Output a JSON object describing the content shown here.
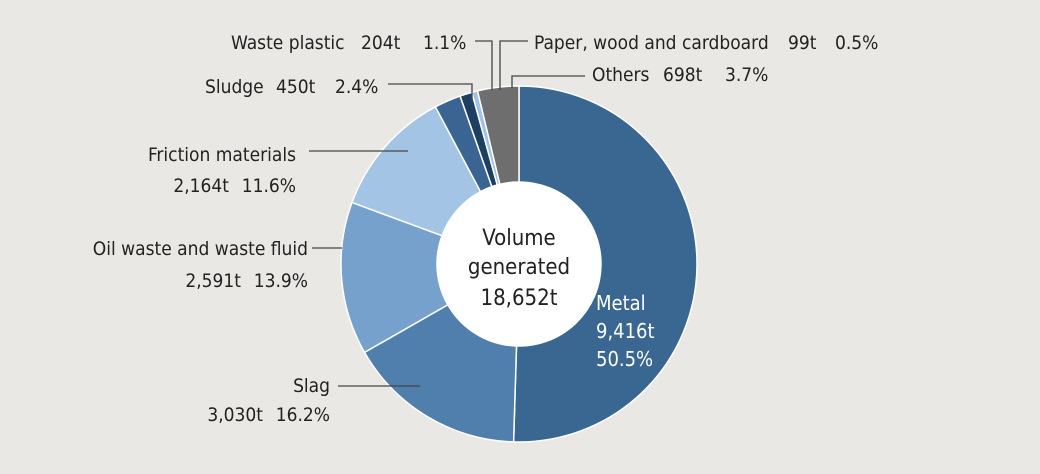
{
  "chart_data": {
    "type": "pie",
    "title": "",
    "center": {
      "line1": "Volume",
      "line2": "generated",
      "line3": "18,652t"
    },
    "total": 18652,
    "unit": "t",
    "slices": [
      {
        "name": "Metal",
        "value_label": "9,416t",
        "percent_label": "50.5%",
        "value": 9416,
        "percent": 50.5,
        "color": "#396791"
      },
      {
        "name": "Slag",
        "value_label": "3,030t",
        "percent_label": "16.2%",
        "value": 3030,
        "percent": 16.2,
        "color": "#517fad"
      },
      {
        "name": "Oil waste and waste fluid",
        "value_label": "2,591t",
        "percent_label": "13.9%",
        "value": 2591,
        "percent": 13.9,
        "color": "#76a1cc"
      },
      {
        "name": "Friction materials",
        "value_label": "2,164t",
        "percent_label": "11.6%",
        "value": 2164,
        "percent": 11.6,
        "color": "#a3c4e4"
      },
      {
        "name": "Sludge",
        "value_label": "450t",
        "percent_label": "2.4%",
        "value": 450,
        "percent": 2.4,
        "color": "#3a6592"
      },
      {
        "name": "Waste plastic",
        "value_label": "204t",
        "percent_label": "1.1%",
        "value": 204,
        "percent": 1.1,
        "color": "#1e3e62"
      },
      {
        "name": "Paper, wood and cardboard",
        "value_label": "99t",
        "percent_label": "0.5%",
        "value": 99,
        "percent": 0.5,
        "color": "#9ec3e6"
      },
      {
        "name": "Others",
        "value_label": "698t",
        "percent_label": "3.7%",
        "value": 698,
        "percent": 3.7,
        "color": "#6e6e6e"
      }
    ]
  }
}
